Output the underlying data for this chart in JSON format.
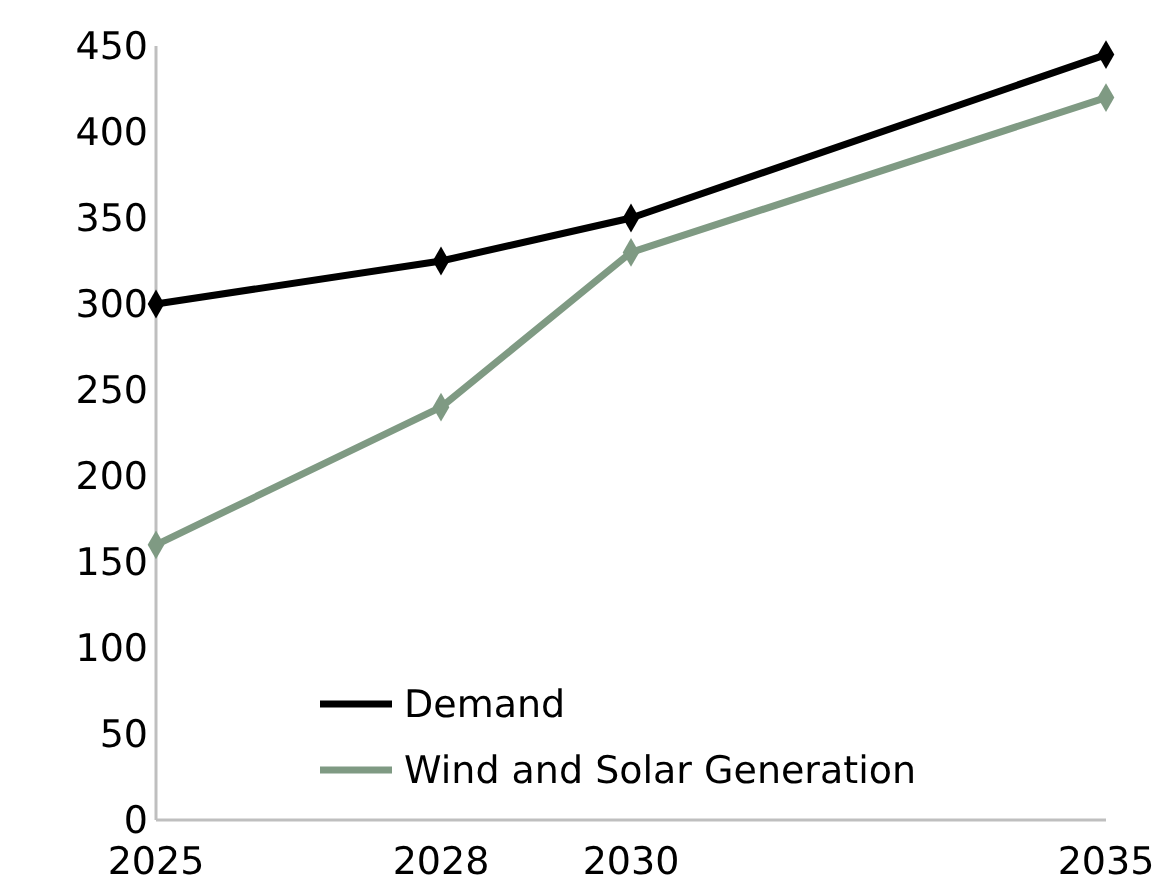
{
  "chart_data": {
    "type": "line",
    "x": [
      2025,
      2028,
      2030,
      2035
    ],
    "xlim": [
      2025,
      2035
    ],
    "xticks": [
      2025,
      2028,
      2030,
      2035
    ],
    "ylim": [
      0,
      450
    ],
    "yticks": [
      0,
      50,
      100,
      150,
      200,
      250,
      300,
      350,
      400,
      450
    ],
    "series": [
      {
        "name": "Demand",
        "color": "#000000",
        "values": [
          300,
          325,
          350,
          445
        ]
      },
      {
        "name": "Wind and Solar Generation",
        "color": "#7f9a83",
        "values": [
          160,
          240,
          330,
          420
        ]
      }
    ],
    "marker": "diamond",
    "line_style": "solid",
    "grid": false,
    "legend": "bottom"
  }
}
